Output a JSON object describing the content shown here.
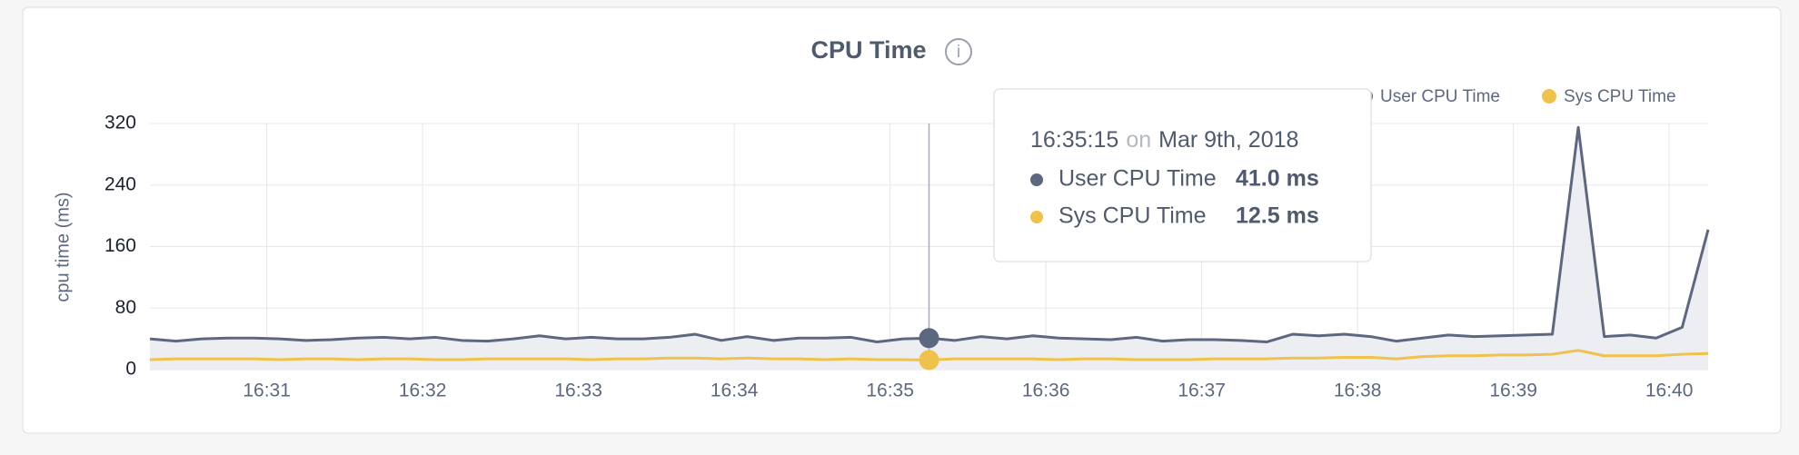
{
  "chart_data": {
    "type": "line",
    "title": "CPU Time",
    "ylabel": "cpu time (ms)",
    "x": [
      "16:30:15",
      "16:30:25",
      "16:30:35",
      "16:30:45",
      "16:30:55",
      "16:31:05",
      "16:31:15",
      "16:31:25",
      "16:31:35",
      "16:31:45",
      "16:31:55",
      "16:32:05",
      "16:32:15",
      "16:32:25",
      "16:32:35",
      "16:32:45",
      "16:32:55",
      "16:33:05",
      "16:33:15",
      "16:33:25",
      "16:33:35",
      "16:33:45",
      "16:33:55",
      "16:34:05",
      "16:34:15",
      "16:34:25",
      "16:34:35",
      "16:34:45",
      "16:34:55",
      "16:35:05",
      "16:35:15",
      "16:35:25",
      "16:35:35",
      "16:35:45",
      "16:35:55",
      "16:36:05",
      "16:36:15",
      "16:36:25",
      "16:36:35",
      "16:36:45",
      "16:36:55",
      "16:37:05",
      "16:37:15",
      "16:37:25",
      "16:37:35",
      "16:37:45",
      "16:37:55",
      "16:38:05",
      "16:38:15",
      "16:38:25",
      "16:38:35",
      "16:38:45",
      "16:38:55",
      "16:39:05",
      "16:39:15",
      "16:39:25",
      "16:39:35",
      "16:39:45",
      "16:39:55",
      "16:40:05",
      "16:40:15"
    ],
    "series": [
      {
        "name": "User CPU Time",
        "color": "#5d6880",
        "area": "#eceef2",
        "values": [
          40,
          37,
          40,
          41,
          41,
          40,
          38,
          39,
          41,
          42,
          40,
          42,
          38,
          37,
          40,
          44,
          40,
          42,
          40,
          40,
          42,
          46,
          38,
          43,
          38,
          41,
          41,
          42,
          36,
          40,
          41,
          38,
          43,
          40,
          44,
          41,
          40,
          39,
          42,
          37,
          39,
          39,
          38,
          36,
          46,
          44,
          46,
          43,
          37,
          41,
          45,
          43,
          44,
          45,
          46,
          315,
          43,
          45,
          41,
          55,
          182
        ]
      },
      {
        "name": "Sys CPU Time",
        "color": "#f0c24b",
        "values": [
          13,
          14,
          14,
          14,
          14,
          13,
          14,
          14,
          13,
          14,
          14,
          13,
          13,
          14,
          14,
          14,
          14,
          13,
          14,
          14,
          15,
          15,
          14,
          15,
          14,
          14,
          13,
          14,
          13,
          13,
          12.5,
          14,
          14,
          14,
          14,
          13,
          14,
          14,
          13,
          13,
          13,
          14,
          14,
          14,
          15,
          15,
          16,
          16,
          14,
          17,
          18,
          18,
          19,
          19,
          20,
          25,
          18,
          18,
          18,
          20,
          21
        ]
      }
    ],
    "xlim": [
      "16:30:15",
      "16:40:15"
    ],
    "xticks": [
      "16:31",
      "16:32",
      "16:33",
      "16:34",
      "16:35",
      "16:36",
      "16:37",
      "16:38",
      "16:39",
      "16:40"
    ],
    "ylim": [
      0,
      320
    ],
    "yticks": [
      0,
      80,
      160,
      240,
      320
    ],
    "grid": true,
    "tooltip": {
      "x": "16:35:15",
      "on": "on",
      "date": "Mar 9th, 2018",
      "labels": [
        "41.0 ms",
        "12.5 ms"
      ]
    }
  }
}
